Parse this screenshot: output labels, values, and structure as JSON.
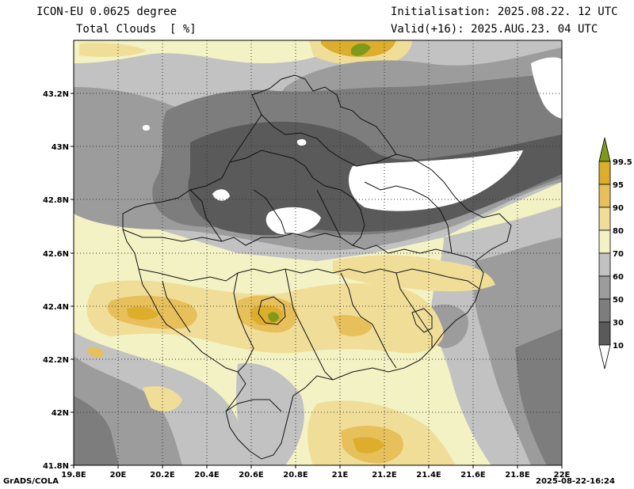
{
  "header": {
    "model": "ICON-EU 0.0625 degree",
    "variable": "Total Clouds  [ %]",
    "init": "Initialisation: 2025.08.22. 12 UTC",
    "valid": "Valid(+16): 2025.AUG.23. 04 UTC"
  },
  "axes": {
    "x_ticks": [
      "19.8E",
      "20E",
      "20.2E",
      "20.4E",
      "20.6E",
      "20.8E",
      "21E",
      "21.2E",
      "21.4E",
      "21.6E",
      "21.8E",
      "22E"
    ],
    "y_ticks": [
      "43.2N",
      "43N",
      "42.8N",
      "42.6N",
      "42.4N",
      "42.2N",
      "42N",
      "41.8N"
    ]
  },
  "colorbar": {
    "levels": [
      "99.5",
      "95",
      "90",
      "80",
      "70",
      "60",
      "50",
      "30",
      "10"
    ],
    "colors": {
      "lt10": "#ffffff",
      "b10_30": "#5a5a5a",
      "b30_50": "#7d7d7d",
      "b50_60": "#9c9c9c",
      "b60_70": "#c2c2c2",
      "b70_80": "#f3f2c4",
      "b80_90": "#f0de98",
      "b90_95": "#e7c05c",
      "b95_99_5": "#ddad2c",
      "gt99_5": "#7f9a1a"
    }
  },
  "footer": {
    "left": "GrADS/COLA",
    "right": "2025-08-22-16:24"
  }
}
